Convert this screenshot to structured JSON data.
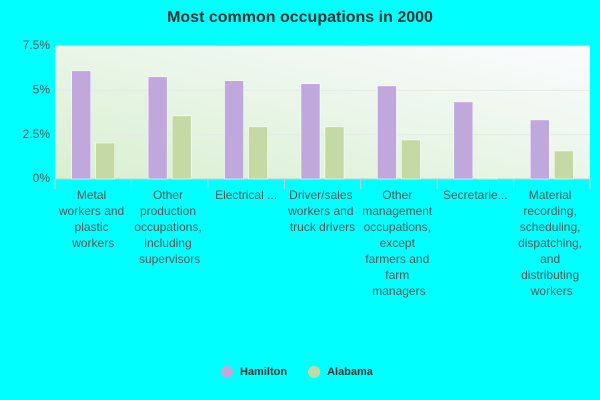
{
  "chart_data": {
    "type": "bar",
    "title": "Most common occupations in 2000",
    "categories": [
      "Metal workers and plastic workers",
      "Other production occupations, including supervisors",
      "Electrical ...",
      "Driver/sales workers and truck drivers",
      "Other management occupations, except farmers and farm managers",
      "Secretarie...",
      "Material recording, scheduling, dispatching, and distributing workers"
    ],
    "series": [
      {
        "name": "Hamilton",
        "color": "#c0a8dc",
        "values": [
          6.1,
          5.76,
          5.54,
          5.37,
          5.25,
          4.35,
          3.33
        ]
      },
      {
        "name": "Alabama",
        "color": "#c5d9a4",
        "values": [
          2.03,
          3.56,
          2.94,
          2.94,
          2.2,
          0.06,
          1.58
        ]
      }
    ],
    "ylim": [
      0,
      7.5
    ],
    "yticks": [
      {
        "value": 0,
        "label": "0%"
      },
      {
        "value": 2.5,
        "label": "2.5%"
      },
      {
        "value": 5,
        "label": "5%"
      },
      {
        "value": 7.5,
        "label": "7.5%"
      }
    ],
    "grid": true,
    "legend": "bottom"
  }
}
